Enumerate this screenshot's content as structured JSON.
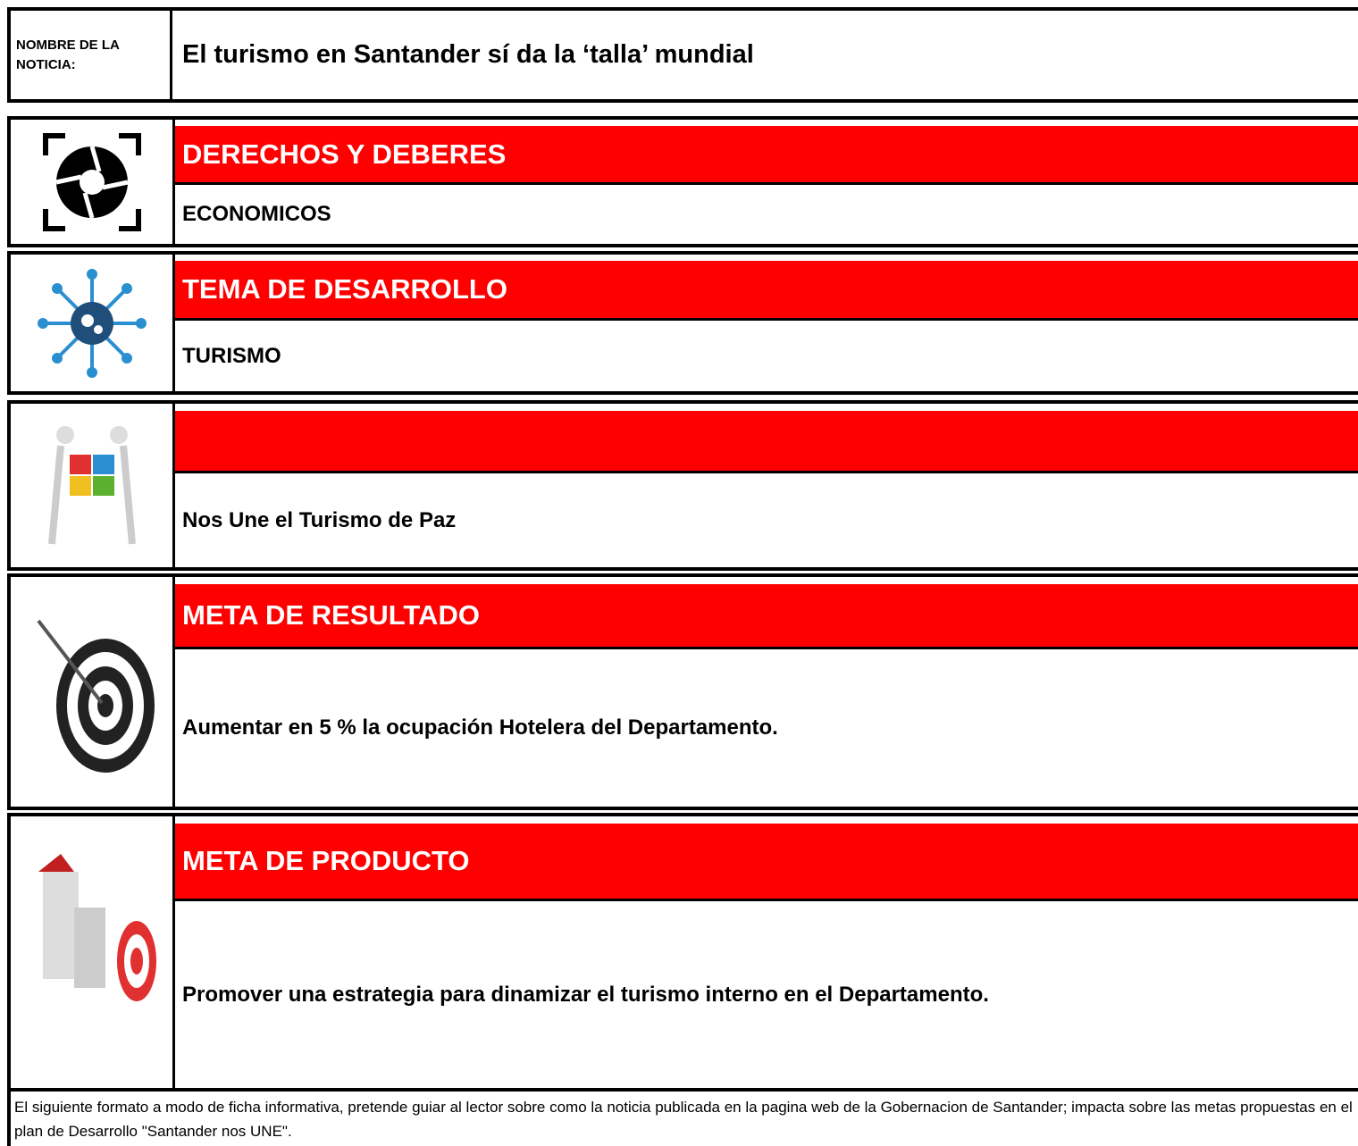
{
  "header": {
    "label": "NOMBRE DE LA NOTICIA:",
    "title": "El turismo en Santander sí da la ‘talla’ mundial"
  },
  "sections": [
    {
      "heading": "DERECHOS Y DEBERES",
      "value": "ECONOMICOS"
    },
    {
      "heading": "TEMA DE DESARROLLO",
      "value": "TURISMO"
    },
    {
      "value": "Nos Une el Turismo de Paz"
    },
    {
      "heading": "META DE RESULTADO",
      "value": "Aumentar en 5 % la ocupación Hotelera del Departamento."
    },
    {
      "heading": "META DE PRODUCTO",
      "value": "Promover una estrategia para dinamizar el turismo interno en el Departamento."
    }
  ],
  "footer": "El siguiente formato a modo de ficha informativa, pretende guiar al lector sobre como la noticia publicada en la pagina web de la Gobernacion de Santander; impacta sobre las metas propuestas en el plan de Desarrollo \"Santander nos UNE\"."
}
